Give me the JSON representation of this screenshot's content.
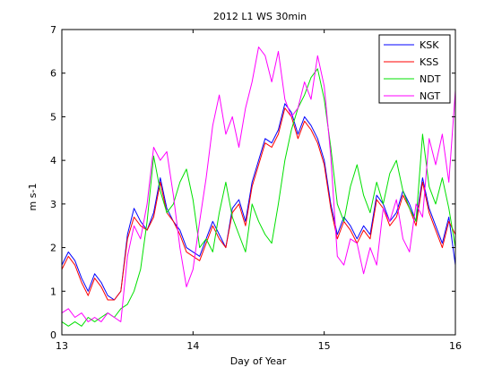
{
  "chart_data": {
    "type": "line",
    "title": "2012 L1 WS 30min",
    "xlabel": "Day of Year",
    "ylabel": "m s-1",
    "xlim": [
      13,
      16
    ],
    "ylim": [
      0,
      7
    ],
    "xticks": [
      13,
      14,
      15,
      16
    ],
    "yticks": [
      0,
      1,
      2,
      3,
      4,
      5,
      6,
      7
    ],
    "legend_position": "top-right",
    "grid": false,
    "series": [
      {
        "name": "KSK",
        "color": "#0000ff",
        "x": [
          13.0,
          13.05,
          13.1,
          13.15,
          13.2,
          13.25,
          13.3,
          13.35,
          13.4,
          13.45,
          13.5,
          13.55,
          13.6,
          13.65,
          13.7,
          13.75,
          13.8,
          13.85,
          13.9,
          13.95,
          14.0,
          14.05,
          14.1,
          14.15,
          14.2,
          14.25,
          14.3,
          14.35,
          14.4,
          14.45,
          14.5,
          14.55,
          14.6,
          14.65,
          14.7,
          14.75,
          14.8,
          14.85,
          14.9,
          14.95,
          15.0,
          15.05,
          15.1,
          15.15,
          15.2,
          15.25,
          15.3,
          15.35,
          15.4,
          15.45,
          15.5,
          15.55,
          15.6,
          15.65,
          15.7,
          15.75,
          15.8,
          15.85,
          15.9,
          15.95,
          16.0
        ],
        "y": [
          1.6,
          1.9,
          1.7,
          1.3,
          1.0,
          1.4,
          1.2,
          0.9,
          0.8,
          1.0,
          2.3,
          2.9,
          2.6,
          2.4,
          2.8,
          3.6,
          2.9,
          2.6,
          2.4,
          2.0,
          1.9,
          1.8,
          2.2,
          2.6,
          2.3,
          2.0,
          2.9,
          3.1,
          2.6,
          3.5,
          4.0,
          4.5,
          4.4,
          4.7,
          5.3,
          5.1,
          4.6,
          5.0,
          4.8,
          4.5,
          4.0,
          3.0,
          2.3,
          2.7,
          2.5,
          2.2,
          2.5,
          2.3,
          3.2,
          3.0,
          2.6,
          2.8,
          3.3,
          3.0,
          2.6,
          3.6,
          2.9,
          2.5,
          2.1,
          2.7,
          1.6
        ]
      },
      {
        "name": "KSS",
        "color": "#ff0000",
        "x": [
          13.0,
          13.05,
          13.1,
          13.15,
          13.2,
          13.25,
          13.3,
          13.35,
          13.4,
          13.45,
          13.5,
          13.55,
          13.6,
          13.65,
          13.7,
          13.75,
          13.8,
          13.85,
          13.9,
          13.95,
          14.0,
          14.05,
          14.1,
          14.15,
          14.2,
          14.25,
          14.3,
          14.35,
          14.4,
          14.45,
          14.5,
          14.55,
          14.6,
          14.65,
          14.7,
          14.75,
          14.8,
          14.85,
          14.9,
          14.95,
          15.0,
          15.05,
          15.1,
          15.15,
          15.2,
          15.25,
          15.3,
          15.35,
          15.4,
          15.45,
          15.5,
          15.55,
          15.6,
          15.65,
          15.7,
          15.75,
          15.8,
          15.85,
          15.9,
          15.95,
          16.0
        ],
        "y": [
          1.5,
          1.8,
          1.6,
          1.2,
          0.9,
          1.3,
          1.1,
          0.8,
          0.8,
          1.0,
          2.2,
          2.7,
          2.5,
          2.4,
          2.7,
          3.5,
          2.8,
          2.6,
          2.3,
          1.9,
          1.8,
          1.7,
          2.1,
          2.5,
          2.2,
          2.0,
          2.8,
          3.0,
          2.5,
          3.4,
          3.9,
          4.4,
          4.3,
          4.6,
          5.2,
          5.0,
          4.5,
          4.9,
          4.7,
          4.4,
          3.9,
          2.9,
          2.2,
          2.6,
          2.4,
          2.1,
          2.4,
          2.2,
          3.1,
          2.9,
          2.5,
          2.7,
          3.2,
          2.9,
          2.5,
          3.5,
          2.8,
          2.4,
          2.0,
          2.6,
          2.3
        ]
      },
      {
        "name": "NDT",
        "color": "#00e000",
        "x": [
          13.0,
          13.05,
          13.1,
          13.15,
          13.2,
          13.25,
          13.3,
          13.35,
          13.4,
          13.45,
          13.5,
          13.55,
          13.6,
          13.65,
          13.7,
          13.75,
          13.8,
          13.85,
          13.9,
          13.95,
          14.0,
          14.05,
          14.1,
          14.15,
          14.2,
          14.25,
          14.3,
          14.35,
          14.4,
          14.45,
          14.5,
          14.55,
          14.6,
          14.65,
          14.7,
          14.75,
          14.8,
          14.85,
          14.9,
          14.95,
          15.0,
          15.05,
          15.1,
          15.15,
          15.2,
          15.25,
          15.3,
          15.35,
          15.4,
          15.45,
          15.5,
          15.55,
          15.6,
          15.65,
          15.7,
          15.75,
          15.8,
          15.85,
          15.9,
          15.95,
          16.0
        ],
        "y": [
          0.3,
          0.2,
          0.3,
          0.2,
          0.4,
          0.3,
          0.4,
          0.5,
          0.4,
          0.6,
          0.7,
          1.0,
          1.5,
          2.6,
          4.1,
          3.3,
          2.8,
          3.0,
          3.5,
          3.8,
          3.1,
          2.0,
          2.2,
          1.9,
          2.8,
          3.5,
          2.7,
          2.3,
          1.9,
          3.0,
          2.6,
          2.3,
          2.1,
          3.0,
          4.0,
          4.7,
          5.2,
          5.5,
          5.9,
          6.1,
          5.4,
          4.3,
          3.0,
          2.6,
          3.4,
          3.9,
          3.2,
          2.8,
          3.5,
          3.0,
          3.7,
          4.0,
          3.3,
          2.9,
          2.6,
          4.6,
          3.4,
          3.0,
          3.6,
          2.9,
          2.0
        ]
      },
      {
        "name": "NGT",
        "color": "#ff00ff",
        "x": [
          13.0,
          13.05,
          13.1,
          13.15,
          13.2,
          13.25,
          13.3,
          13.35,
          13.4,
          13.45,
          13.5,
          13.55,
          13.6,
          13.65,
          13.7,
          13.75,
          13.8,
          13.85,
          13.9,
          13.95,
          14.0,
          14.05,
          14.1,
          14.15,
          14.2,
          14.25,
          14.3,
          14.35,
          14.4,
          14.45,
          14.5,
          14.55,
          14.6,
          14.65,
          14.7,
          14.75,
          14.8,
          14.85,
          14.9,
          14.95,
          15.0,
          15.05,
          15.1,
          15.15,
          15.2,
          15.25,
          15.3,
          15.35,
          15.4,
          15.45,
          15.5,
          15.55,
          15.6,
          15.65,
          15.7,
          15.75,
          15.8,
          15.85,
          15.9,
          15.95,
          16.0
        ],
        "y": [
          0.5,
          0.6,
          0.4,
          0.5,
          0.3,
          0.4,
          0.3,
          0.5,
          0.4,
          0.3,
          1.8,
          2.5,
          2.2,
          3.0,
          4.3,
          4.0,
          4.2,
          3.2,
          2.0,
          1.1,
          1.5,
          2.6,
          3.6,
          4.8,
          5.5,
          4.6,
          5.0,
          4.3,
          5.2,
          5.8,
          6.6,
          6.4,
          5.8,
          6.5,
          5.4,
          5.0,
          5.2,
          5.8,
          5.4,
          6.4,
          5.7,
          4.1,
          1.8,
          1.6,
          2.2,
          2.1,
          1.4,
          2.0,
          1.6,
          2.9,
          2.6,
          3.1,
          2.2,
          1.9,
          3.0,
          2.7,
          4.5,
          3.9,
          4.6,
          3.5,
          5.6
        ]
      }
    ]
  }
}
